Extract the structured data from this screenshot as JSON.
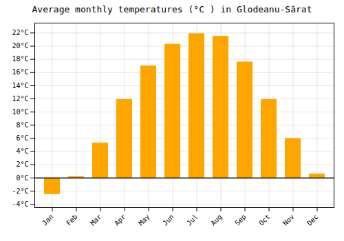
{
  "chart_data": {
    "type": "bar",
    "title": "Average monthly temperatures (°C ) in Glodeanu-Sărat",
    "categories": [
      "Jan",
      "Feb",
      "Mar",
      "Apr",
      "May",
      "Jun",
      "Jul",
      "Aug",
      "Sep",
      "Oct",
      "Nov",
      "Dec"
    ],
    "values": [
      -2.5,
      0.2,
      5.3,
      11.9,
      17.0,
      20.3,
      21.9,
      21.5,
      17.6,
      11.9,
      6.0,
      0.6
    ],
    "color": "#FFA500",
    "ylim": [
      -4.5,
      23.5
    ],
    "yticks": [
      {
        "value": -4,
        "label": "-4°C"
      },
      {
        "value": -2,
        "label": "-2°C"
      },
      {
        "value": 0,
        "label": "0°C"
      },
      {
        "value": 2,
        "label": "2°C"
      },
      {
        "value": 4,
        "label": "4°C"
      },
      {
        "value": 6,
        "label": "6°C"
      },
      {
        "value": 8,
        "label": "8°C"
      },
      {
        "value": 10,
        "label": "10°C"
      },
      {
        "value": 12,
        "label": "12°C"
      },
      {
        "value": 14,
        "label": "14°C"
      },
      {
        "value": 16,
        "label": "16°C"
      },
      {
        "value": 18,
        "label": "18°C"
      },
      {
        "value": 20,
        "label": "20°C"
      },
      {
        "value": 22,
        "label": "22°C"
      }
    ],
    "grid": true
  }
}
